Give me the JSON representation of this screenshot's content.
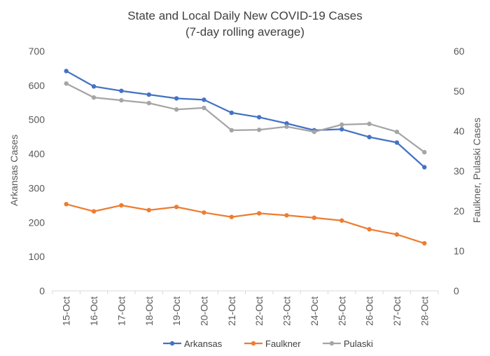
{
  "chart_data": {
    "type": "line",
    "title": "State and Local Daily New COVID-19 Cases",
    "subtitle": "(7-day rolling average)",
    "categories": [
      "15-Oct",
      "16-Oct",
      "17-Oct",
      "18-Oct",
      "19-Oct",
      "20-Oct",
      "21-Oct",
      "22-Oct",
      "23-Oct",
      "24-Oct",
      "25-Oct",
      "26-Oct",
      "27-Oct",
      "28-Oct"
    ],
    "ylabel": "Arkansas Cases",
    "y2label": "Faulkner, Pulaski Cases",
    "ylim": [
      0,
      700
    ],
    "y2lim": [
      0,
      60
    ],
    "yticks": [
      0,
      100,
      200,
      300,
      400,
      500,
      600,
      700
    ],
    "y2ticks": [
      0,
      10,
      20,
      30,
      40,
      50,
      60
    ],
    "grid": false,
    "legend_position": "bottom",
    "series": [
      {
        "name": "Arkansas",
        "axis": "left",
        "color": "#4472C4",
        "values": [
          642,
          597,
          584,
          573,
          562,
          558,
          520,
          507,
          489,
          469,
          472,
          449,
          433,
          361
        ]
      },
      {
        "name": "Faulkner",
        "axis": "right",
        "color": "#ED7D31",
        "values": [
          21.7,
          19.9,
          21.4,
          20.2,
          21.0,
          19.6,
          18.5,
          19.4,
          18.9,
          18.3,
          17.6,
          15.4,
          14.1,
          11.9
        ]
      },
      {
        "name": "Pulaski",
        "axis": "right",
        "color": "#A5A5A5",
        "values": [
          51.9,
          48.4,
          47.7,
          47.0,
          45.4,
          45.8,
          40.2,
          40.3,
          41.1,
          39.8,
          41.6,
          41.8,
          39.8,
          34.7
        ]
      }
    ]
  }
}
